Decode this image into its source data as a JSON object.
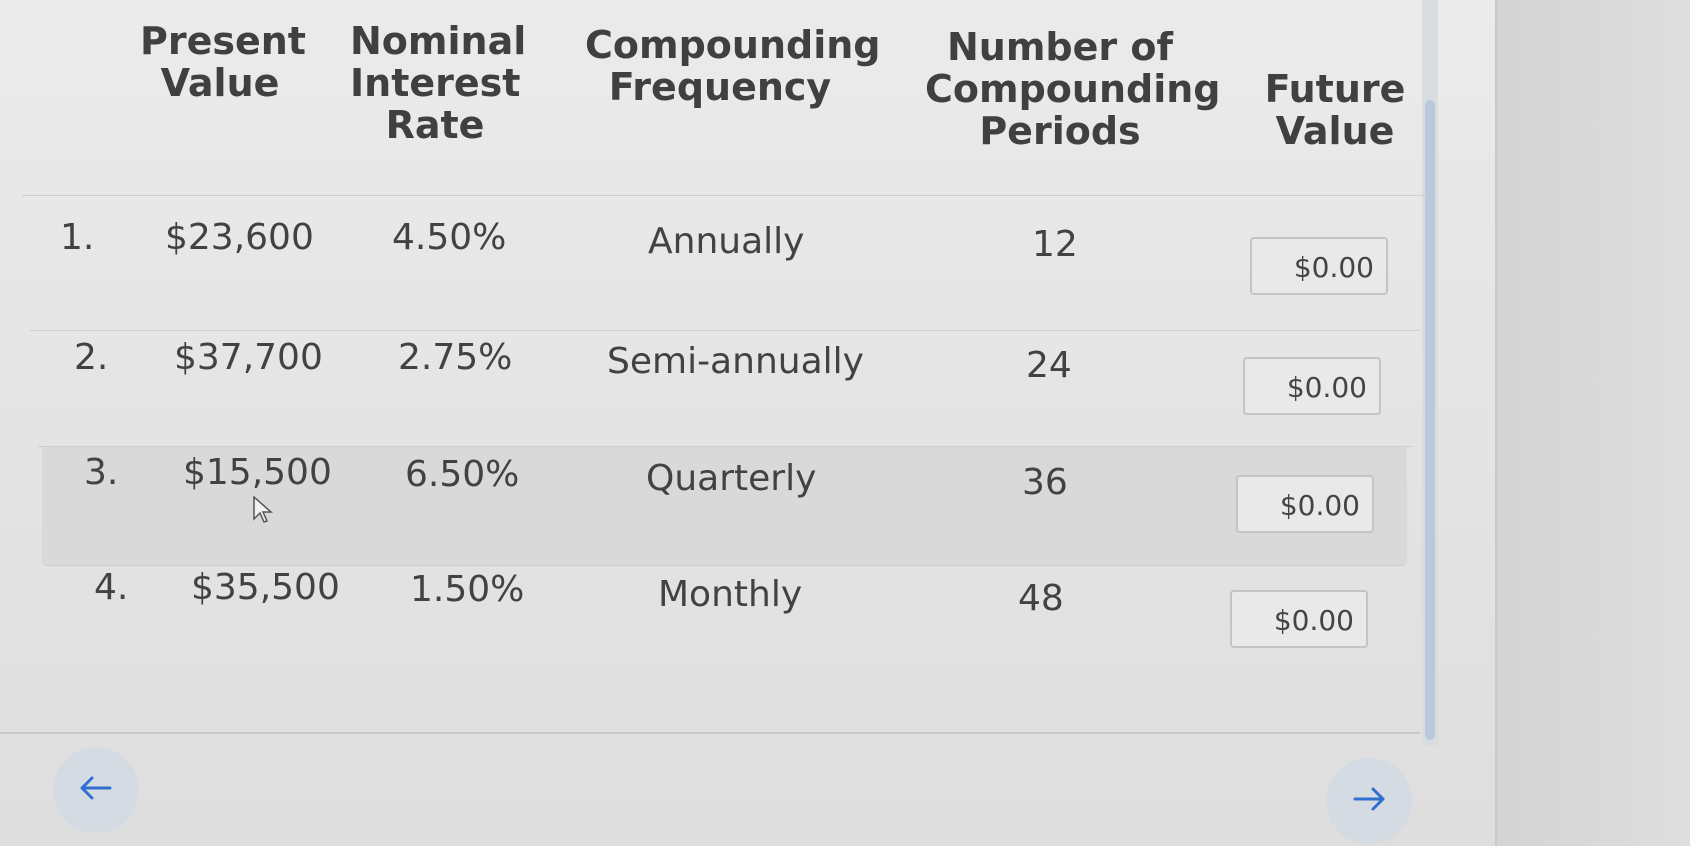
{
  "table": {
    "headers": {
      "present_value": "Present\nValue",
      "nominal_rate": "Nominal\nInterest\nRate",
      "frequency": "Compounding\nFrequency",
      "periods": "Number of\nCompounding\nPeriods",
      "future_value": "Future\nValue"
    },
    "rows": [
      {
        "num": "1.",
        "pv": "$23,600",
        "rate": "4.50%",
        "freq": "Annually",
        "periods": "12",
        "fv": "$0.00"
      },
      {
        "num": "2.",
        "pv": "$37,700",
        "rate": "2.75%",
        "freq": "Semi-annually",
        "periods": "24",
        "fv": "$0.00"
      },
      {
        "num": "3.",
        "pv": "$15,500",
        "rate": "6.50%",
        "freq": "Quarterly",
        "periods": "36",
        "fv": "$0.00"
      },
      {
        "num": "4.",
        "pv": "$35,500",
        "rate": "1.50%",
        "freq": "Monthly",
        "periods": "48",
        "fv": "$0.00"
      }
    ]
  },
  "nav": {
    "prev_icon": "arrow-left-icon",
    "next_icon": "arrow-right-icon"
  },
  "colors": {
    "nav_arrow": "#2f6fd0",
    "scroll_thumb": "#b9c8dd"
  }
}
